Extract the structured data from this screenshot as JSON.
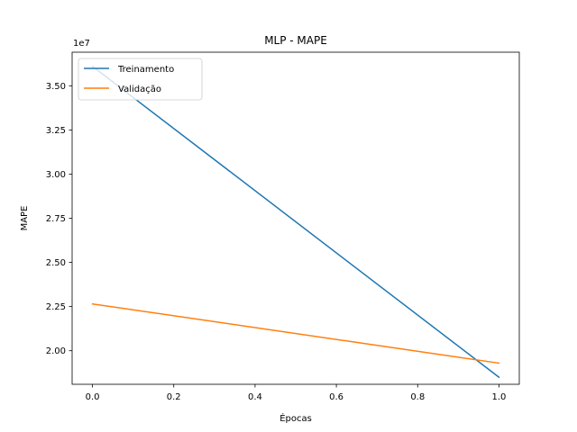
{
  "chart_data": {
    "type": "line",
    "title": "MLP - MAPE",
    "xlabel": "Épocas",
    "ylabel": "MAPE",
    "offset_text": "1e7",
    "x": [
      0.0,
      1.0
    ],
    "xlim": [
      -0.05,
      1.05
    ],
    "ylim": [
      18100000,
      36900000
    ],
    "x_ticks": [
      {
        "value": 0.0,
        "label": "0.0"
      },
      {
        "value": 0.2,
        "label": "0.2"
      },
      {
        "value": 0.4,
        "label": "0.4"
      },
      {
        "value": 0.6,
        "label": "0.6"
      },
      {
        "value": 0.8,
        "label": "0.8"
      },
      {
        "value": 1.0,
        "label": "1.0"
      }
    ],
    "y_ticks": [
      {
        "value": 20000000,
        "label": "2.00"
      },
      {
        "value": 22500000,
        "label": "2.25"
      },
      {
        "value": 25000000,
        "label": "2.50"
      },
      {
        "value": 27500000,
        "label": "2.75"
      },
      {
        "value": 30000000,
        "label": "3.00"
      },
      {
        "value": 32500000,
        "label": "3.25"
      },
      {
        "value": 35000000,
        "label": "3.50"
      }
    ],
    "series": [
      {
        "name": "Treinamento",
        "color": "#1f77b4",
        "values": [
          36100000,
          18500000
        ]
      },
      {
        "name": "Validação",
        "color": "#ff7f0e",
        "values": [
          22650000,
          19300000
        ]
      }
    ],
    "legend": "upper left",
    "grid": false
  }
}
